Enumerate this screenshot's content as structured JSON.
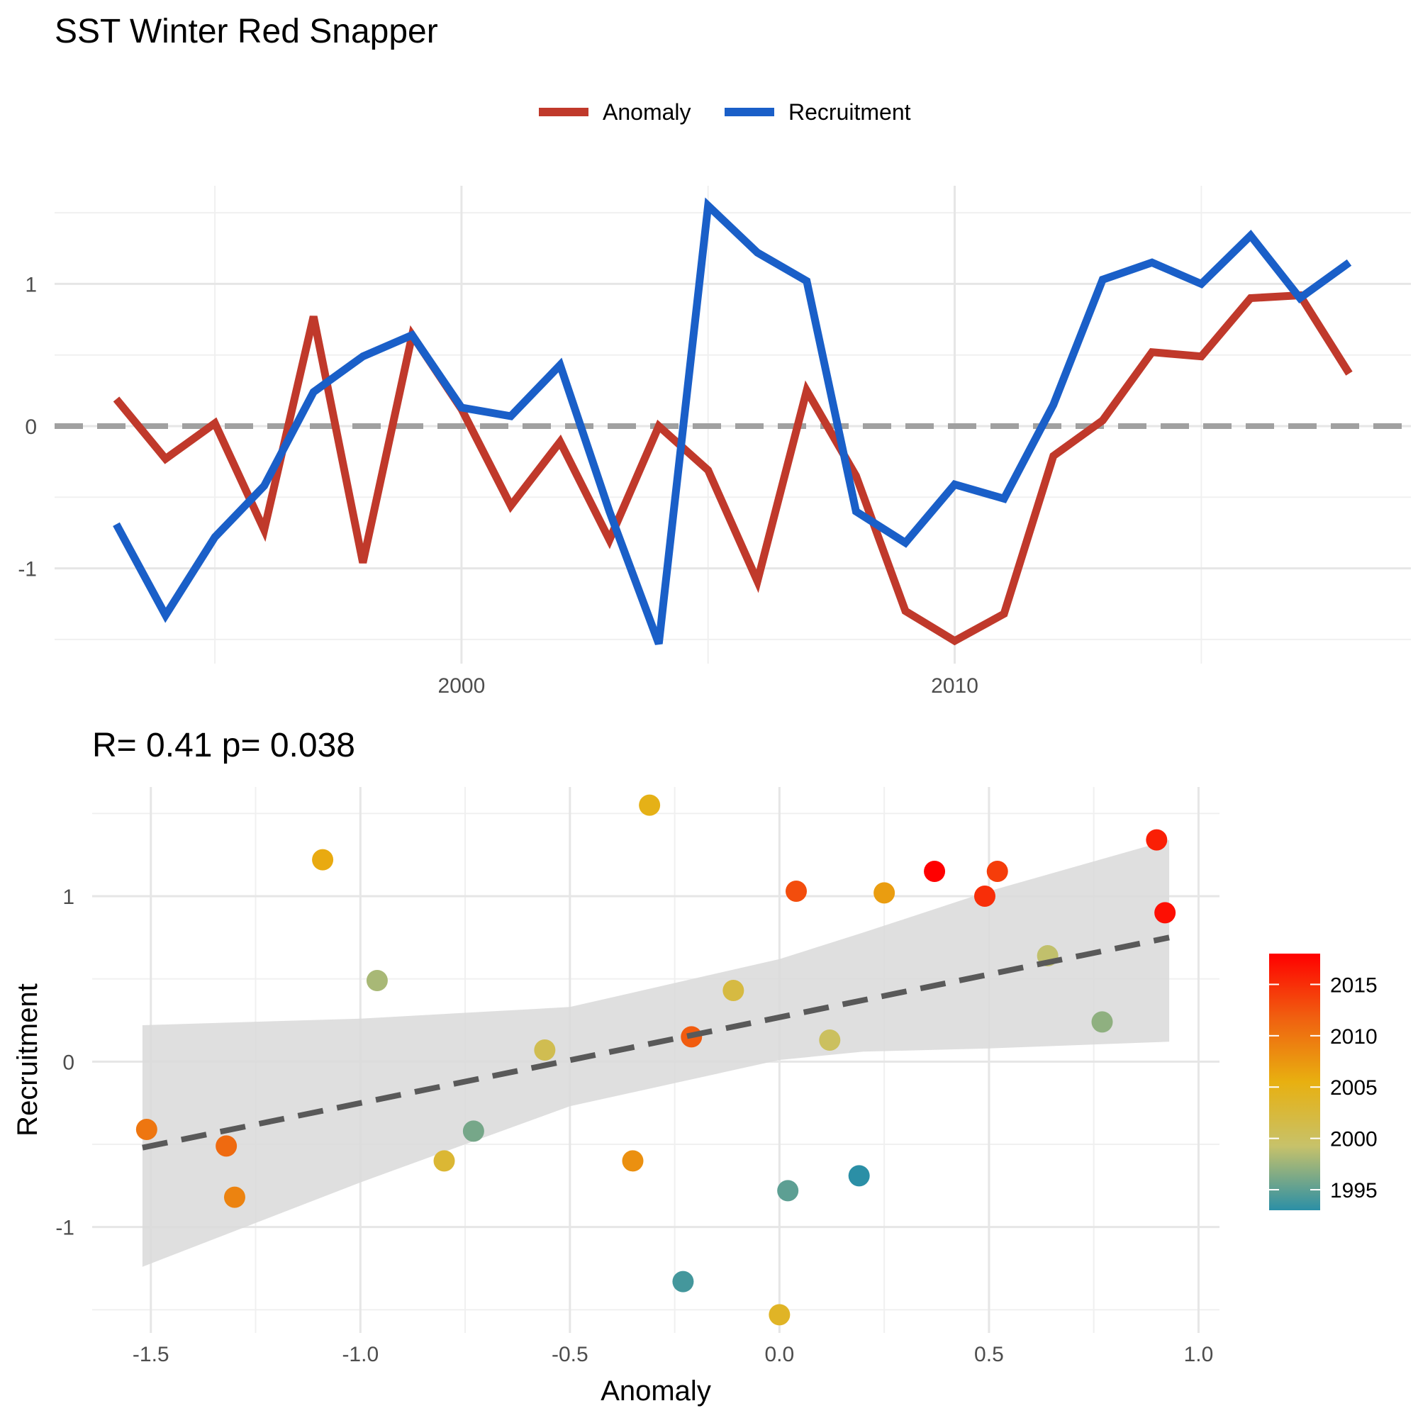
{
  "title": "SST Winter Red Snapper",
  "colors": {
    "anomaly": "#c0392b",
    "recruitment": "#1a5fc8",
    "zero_line": "#a0a0a0",
    "fit_line": "#595959",
    "ribbon": "#d9d9d9"
  },
  "chart_data": [
    {
      "type": "line",
      "legend": {
        "placement": "top",
        "entries": [
          "Anomaly",
          "Recruitment"
        ]
      },
      "x": [
        1993,
        1994,
        1995,
        1996,
        1997,
        1998,
        1999,
        2000,
        2001,
        2002,
        2003,
        2004,
        2005,
        2006,
        2007,
        2008,
        2009,
        2010,
        2011,
        2012,
        2013,
        2014,
        2015,
        2016,
        2017,
        2018
      ],
      "series": [
        {
          "name": "Anomaly",
          "values": [
            0.19,
            -0.23,
            0.02,
            -0.73,
            0.77,
            -0.96,
            0.64,
            0.12,
            -0.56,
            -0.11,
            -0.8,
            0.0,
            -0.31,
            -1.09,
            0.25,
            -0.35,
            -1.3,
            -1.51,
            -1.32,
            -0.21,
            0.04,
            0.52,
            0.49,
            0.9,
            0.92,
            0.37
          ]
        },
        {
          "name": "Recruitment",
          "values": [
            -0.69,
            -1.33,
            -0.78,
            -0.42,
            0.24,
            0.49,
            0.64,
            0.13,
            0.07,
            0.43,
            -0.6,
            -1.53,
            1.55,
            1.22,
            1.02,
            -0.6,
            -0.82,
            -0.41,
            -0.51,
            0.15,
            1.03,
            1.15,
            1.0,
            1.34,
            0.9,
            1.15
          ]
        }
      ],
      "xticks": [
        2000,
        2010
      ],
      "yticks": [
        -1,
        0,
        1
      ],
      "xlim": [
        1991.75,
        2019.25
      ],
      "ylim": [
        -1.67,
        1.69
      ],
      "reference_line": {
        "y": 0,
        "style": "dashed"
      },
      "grid": true
    },
    {
      "type": "scatter",
      "title": "R= 0.41  p= 0.038",
      "xlabel": "Anomaly",
      "ylabel": "Recruitment",
      "x": [
        0.19,
        -0.23,
        0.02,
        -0.73,
        0.77,
        -0.96,
        0.64,
        0.12,
        -0.56,
        -0.11,
        -0.8,
        0.0,
        -0.31,
        -1.09,
        0.25,
        -0.35,
        -1.3,
        -1.51,
        -1.32,
        -0.21,
        0.04,
        0.52,
        0.49,
        0.9,
        0.92,
        0.37
      ],
      "y": [
        -0.69,
        -1.33,
        -0.78,
        -0.42,
        0.24,
        0.49,
        0.64,
        0.13,
        0.07,
        0.43,
        -0.6,
        -1.53,
        1.55,
        1.22,
        1.02,
        -0.6,
        -0.82,
        -0.41,
        -0.51,
        0.15,
        1.03,
        1.15,
        1.0,
        1.34,
        0.9,
        1.15
      ],
      "color_by_year": [
        1993,
        1994,
        1995,
        1996,
        1997,
        1998,
        1999,
        2000,
        2001,
        2002,
        2003,
        2004,
        2005,
        2006,
        2007,
        2008,
        2009,
        2010,
        2011,
        2012,
        2013,
        2014,
        2015,
        2016,
        2017,
        2018
      ],
      "fit": {
        "style": "dashed",
        "x": [
          -1.52,
          0.93
        ],
        "y": [
          -0.52,
          0.75
        ]
      },
      "confidence_band": {
        "x": [
          -1.52,
          -1.0,
          -0.5,
          0.0,
          0.2,
          0.5,
          0.93
        ],
        "lower": [
          -1.24,
          -0.73,
          -0.27,
          0.01,
          0.06,
          0.08,
          0.12
        ],
        "upper": [
          0.22,
          0.26,
          0.33,
          0.62,
          0.78,
          1.03,
          1.34
        ]
      },
      "xticks": [
        -1.5,
        -1.0,
        -0.5,
        0.0,
        0.5,
        1.0
      ],
      "yticks": [
        -1,
        0,
        1
      ],
      "xlim": [
        -1.64,
        1.05
      ],
      "ylim": [
        -1.64,
        1.66
      ],
      "grid": true,
      "colorbar": {
        "ticks": [
          1995,
          2000,
          2005,
          2010,
          2015
        ],
        "range": [
          1993,
          2018
        ],
        "stops": [
          "#2b8fa6",
          "#c7c26a",
          "#e8b010",
          "#f06010",
          "#ff0000"
        ],
        "placement": "right"
      }
    }
  ]
}
